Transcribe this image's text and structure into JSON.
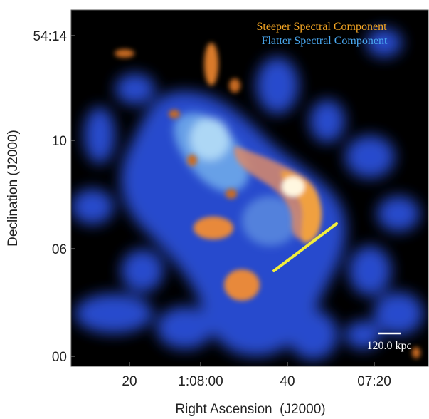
{
  "image": {
    "y_axis": {
      "title": "Declination (J2000)",
      "ticks": [
        "54:14",
        "10",
        "06",
        "00"
      ]
    },
    "x_axis": {
      "title": "Right Ascension  (J2000)",
      "ticks": [
        "20",
        "1:08:00",
        "40",
        "07:20"
      ]
    },
    "legend": {
      "steeper": {
        "label": "Steeper Spectral Component",
        "color": "#f5a623"
      },
      "flatter": {
        "label": "Flatter Spectral Component",
        "color": "#4aa8f0"
      }
    },
    "scale_bar": {
      "label": "120.0 kpc"
    },
    "colors": {
      "background": "#000000",
      "flatter_emission": "#2a4fd8",
      "flatter_core": "#9fd0f5",
      "steeper_emission": "#e8893a",
      "overlay_line": "#f2ee3c"
    }
  }
}
